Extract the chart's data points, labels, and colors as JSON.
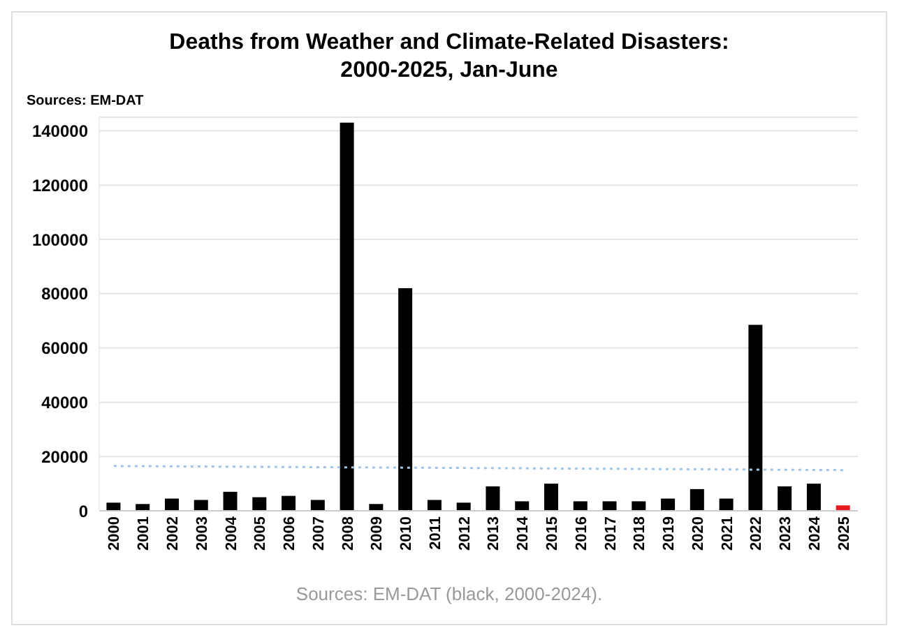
{
  "chart_data": {
    "type": "bar",
    "title": "Deaths from Weather and Climate-Related Disasters:\n2000-2025, Jan-June",
    "annotations": [
      "Sources: EM-DAT",
      "Sources: EM-DAT (black, 2000-2024)."
    ],
    "categories": [
      "2000",
      "2001",
      "2002",
      "2003",
      "2004",
      "2005",
      "2006",
      "2007",
      "2008",
      "2009",
      "2010",
      "2011",
      "2012",
      "2013",
      "2014",
      "2015",
      "2016",
      "2017",
      "2018",
      "2019",
      "2020",
      "2021",
      "2022",
      "2023",
      "2024",
      "2025"
    ],
    "series": [
      {
        "colors": [
          "#000000",
          "#000000",
          "#000000",
          "#000000",
          "#000000",
          "#000000",
          "#000000",
          "#000000",
          "#000000",
          "#000000",
          "#000000",
          "#000000",
          "#000000",
          "#000000",
          "#000000",
          "#000000",
          "#000000",
          "#000000",
          "#000000",
          "#000000",
          "#000000",
          "#000000",
          "#000000",
          "#000000",
          "#000000",
          "#e8191f"
        ],
        "values": [
          3000,
          2500,
          4500,
          4000,
          7000,
          5000,
          5500,
          4000,
          143000,
          2500,
          82000,
          4000,
          3000,
          9000,
          3500,
          10000,
          3500,
          3500,
          3500,
          4500,
          8000,
          4500,
          68500,
          9000,
          10000,
          2000
        ]
      },
      {
        "type": "line",
        "color": "#9fc5e8",
        "values": [
          16500,
          null,
          null,
          null,
          null,
          null,
          null,
          null,
          null,
          null,
          null,
          null,
          null,
          null,
          null,
          null,
          null,
          null,
          null,
          null,
          null,
          null,
          null,
          null,
          null,
          15000
        ]
      }
    ],
    "ylim": [
      0,
      145000
    ],
    "yticks": [
      0,
      20000,
      40000,
      60000,
      80000,
      100000,
      120000,
      140000
    ],
    "grid": "y",
    "legend": false,
    "marker": "none",
    "line_style": "dotted"
  }
}
